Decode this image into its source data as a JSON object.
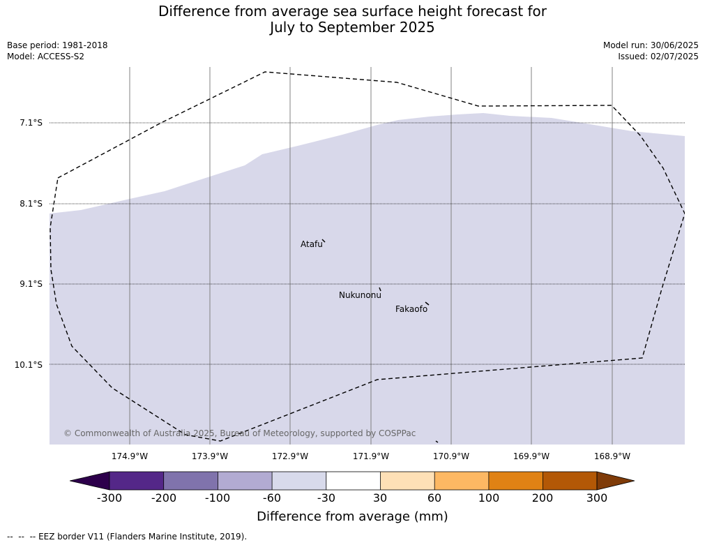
{
  "header": {
    "title_line1": "Difference from average sea surface height forecast for",
    "title_line2": "July to September 2025",
    "base_period": "Base period: 1981-2018",
    "model": "Model: ACCESS-S2",
    "model_run": "Model run: 30/06/2025",
    "issued": "Issued: 02/07/2025"
  },
  "map": {
    "latitude_labels": [
      "7.1°S",
      "8.1°S",
      "9.1°S",
      "10.1°S"
    ],
    "longitude_labels": [
      "174.9°W",
      "173.9°W",
      "172.9°W",
      "171.9°W",
      "170.9°W",
      "169.9°W",
      "168.9°W"
    ],
    "places": [
      "Atafu",
      "Nukunonu",
      "Fakaofo"
    ],
    "copyright": "© Commonwealth of Australia 2025, Bureau of Meteorology, supported by COSPPac",
    "fill_color": "#d8d8ea",
    "eez_style": "dashed"
  },
  "colorbar": {
    "title": "Difference from average (mm)",
    "tick_labels": [
      "-300",
      "-200",
      "-100",
      "-60",
      "-30",
      "30",
      "60",
      "100",
      "200",
      "300"
    ],
    "colors": [
      "#2d004b",
      "#542788",
      "#8073ac",
      "#b2abd2",
      "#d8daeb",
      "#ffffff",
      "#fee0b6",
      "#fdb863",
      "#e08214",
      "#b35806",
      "#7f3b08"
    ]
  },
  "footer": {
    "legend_symbol": "--  --  --",
    "legend_text": " EEZ border V11 (Flanders Marine Institute, 2019)."
  }
}
